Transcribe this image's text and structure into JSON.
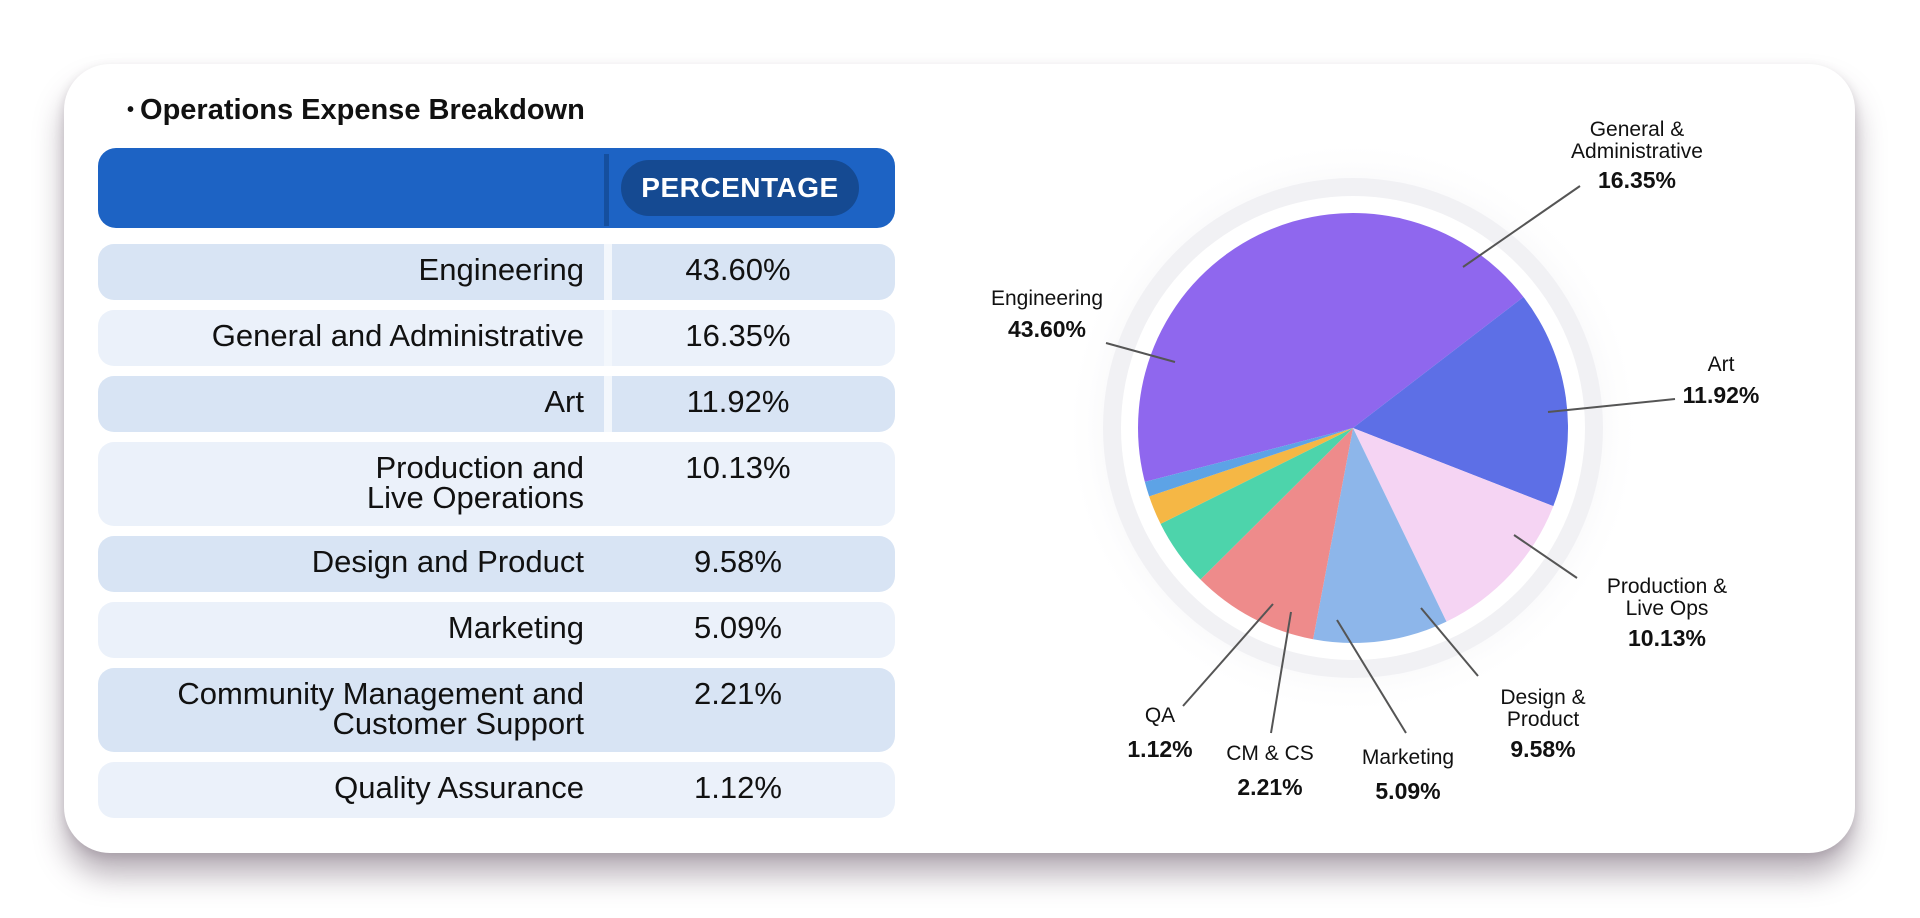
{
  "title": "Operations Expense Breakdown",
  "table": {
    "header": "PERCENTAGE",
    "rows": [
      {
        "category": [
          "Engineering"
        ],
        "value": "43.60%"
      },
      {
        "category": [
          "General and Administrative"
        ],
        "value": "16.35%"
      },
      {
        "category": [
          "Art"
        ],
        "value": "11.92%"
      },
      {
        "category": [
          "Production and",
          "Live Operations"
        ],
        "value": "10.13%"
      },
      {
        "category": [
          "Design and Product"
        ],
        "value": "9.58%"
      },
      {
        "category": [
          "Marketing"
        ],
        "value": "5.09%"
      },
      {
        "category": [
          "Community Management and",
          "Customer Support"
        ],
        "value": "2.21%"
      },
      {
        "category": [
          "Quality Assurance"
        ],
        "value": "1.12%"
      }
    ]
  },
  "chart_data": {
    "type": "pie",
    "title": "",
    "slices": [
      {
        "label": [
          "Engineering"
        ],
        "value": 43.6,
        "value_label": "43.60%",
        "color": "#8f67ee"
      },
      {
        "label": [
          "General &",
          "Administrative"
        ],
        "value": 16.35,
        "value_label": "16.35%",
        "color": "#5d6fe6"
      },
      {
        "label": [
          "Art"
        ],
        "value": 11.92,
        "value_label": "11.92%",
        "color": "#f5d4f3"
      },
      {
        "label": [
          "Production &",
          "Live Ops"
        ],
        "value": 10.13,
        "value_label": "10.13%",
        "color": "#8db6ea"
      },
      {
        "label": [
          "Design &",
          "Product"
        ],
        "value": 9.58,
        "value_label": "9.58%",
        "color": "#ee8b8b"
      },
      {
        "label": [
          "Marketing"
        ],
        "value": 5.09,
        "value_label": "5.09%",
        "color": "#4dd4ab"
      },
      {
        "label": [
          "CM & CS"
        ],
        "value": 2.21,
        "value_label": "2.21%",
        "color": "#f5b745"
      },
      {
        "label": [
          "QA"
        ],
        "value": 1.12,
        "value_label": "1.12%",
        "color": "#5da3e6"
      }
    ]
  }
}
